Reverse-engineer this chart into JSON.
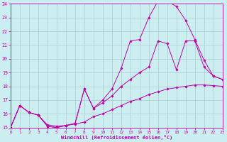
{
  "xlabel": "Windchill (Refroidissement éolien,°C)",
  "bg_color": "#cceef0",
  "grid_color": "#aacccc",
  "line_color": "#bb00aa",
  "xlim": [
    0,
    23
  ],
  "ylim": [
    15,
    24
  ],
  "xticks": [
    0,
    1,
    2,
    3,
    4,
    5,
    6,
    7,
    8,
    9,
    10,
    11,
    12,
    13,
    14,
    15,
    16,
    17,
    18,
    19,
    20,
    21,
    22,
    23
  ],
  "yticks": [
    15,
    16,
    17,
    18,
    19,
    20,
    21,
    22,
    23,
    24
  ],
  "curve1_x": [
    0,
    1,
    2,
    3,
    4,
    5,
    6,
    7,
    8,
    9,
    10,
    11,
    12,
    13,
    14,
    15,
    16,
    17,
    18,
    19,
    20,
    21,
    22,
    23
  ],
  "curve1_y": [
    15.0,
    16.6,
    16.1,
    15.9,
    15.2,
    15.1,
    15.15,
    15.25,
    15.4,
    15.8,
    16.0,
    16.3,
    16.6,
    16.9,
    17.1,
    17.4,
    17.6,
    17.8,
    17.9,
    18.0,
    18.1,
    18.1,
    18.05,
    18.0
  ],
  "curve2_x": [
    0,
    1,
    2,
    3,
    4,
    5,
    6,
    7,
    8,
    9,
    10,
    11,
    12,
    13,
    14,
    15,
    16,
    17,
    18,
    19,
    20,
    21,
    22,
    23
  ],
  "curve2_y": [
    15.0,
    16.6,
    16.1,
    15.9,
    15.1,
    15.0,
    15.15,
    15.3,
    17.8,
    16.4,
    16.8,
    17.3,
    18.0,
    18.5,
    19.0,
    19.4,
    21.3,
    21.1,
    19.2,
    21.3,
    21.3,
    19.4,
    18.75,
    18.5
  ],
  "curve3_x": [
    0,
    1,
    2,
    3,
    4,
    5,
    6,
    7,
    8,
    9,
    10,
    11,
    12,
    13,
    14,
    15,
    16,
    17,
    18,
    19,
    20,
    21,
    22,
    23
  ],
  "curve3_y": [
    15.0,
    16.6,
    16.1,
    15.9,
    15.1,
    15.0,
    15.15,
    15.3,
    17.8,
    16.4,
    17.0,
    17.8,
    19.3,
    21.3,
    21.4,
    23.0,
    24.2,
    24.2,
    23.8,
    22.8,
    21.4,
    19.9,
    18.75,
    18.5
  ]
}
